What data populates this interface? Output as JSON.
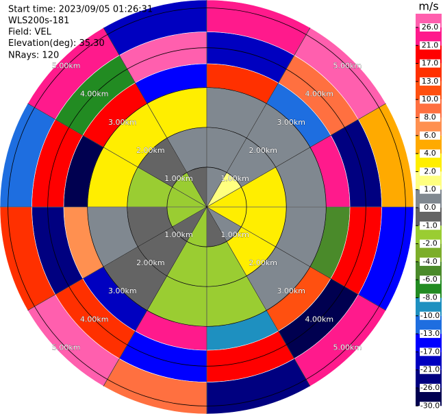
{
  "chart_data": {
    "type": "ppi",
    "annotations": [
      "Start time: 2023/09/05 01:26:31",
      "WLS200s-181",
      "Field: VEL",
      "Elevation(deg): 35.30",
      "NRays: 120"
    ],
    "range_ticks": [
      {
        "value": 1,
        "label": "1.00km"
      },
      {
        "value": 2,
        "label": "2.00km"
      },
      {
        "value": 3,
        "label": "3.00km"
      },
      {
        "value": 4,
        "label": "4.00km"
      },
      {
        "value": 5,
        "label": "5.00km"
      }
    ],
    "rlim": [
      0,
      5.2
    ],
    "grid": true,
    "field": {
      "azimuths_deg": [
        0,
        30,
        60,
        90,
        120,
        150,
        180,
        210,
        240,
        270,
        300,
        330,
        360
      ],
      "range_bins_km": [
        0,
        1,
        2,
        3,
        3.6,
        4.4,
        5.2
      ],
      "values": [
        [
          0.5,
          0.5,
          0.5,
          15,
          -20,
          25
        ],
        [
          1.5,
          0.5,
          0.5,
          -12,
          8,
          27
        ],
        [
          3,
          3,
          0.5,
          22,
          -25,
          5
        ],
        [
          3,
          3,
          0.5,
          -5,
          18,
          -15
        ],
        [
          0.5,
          3,
          0.5,
          11,
          -28,
          24
        ],
        [
          -0.5,
          -1.5,
          -1.5,
          -9,
          19,
          -22
        ],
        [
          -1.5,
          -1.5,
          -1.5,
          23,
          -16,
          9
        ],
        [
          -0.5,
          -0.5,
          -0.5,
          -19,
          14,
          28
        ],
        [
          -1.5,
          -0.5,
          0.5,
          7,
          -23,
          16
        ],
        [
          -1.5,
          -1.5,
          3,
          -27,
          20,
          -11
        ],
        [
          -1.5,
          -0.5,
          3,
          18,
          -7,
          24
        ],
        [
          -0.5,
          0.5,
          3,
          -14,
          26,
          -18
        ]
      ]
    },
    "colorbar": {
      "title": "m/s",
      "ticks": [
        {
          "value": 26,
          "label": "26.0"
        },
        {
          "value": 21,
          "label": "21.0"
        },
        {
          "value": 17,
          "label": "17.0"
        },
        {
          "value": 13,
          "label": "13.0"
        },
        {
          "value": 10,
          "label": "10.0"
        },
        {
          "value": 8,
          "label": "8.0"
        },
        {
          "value": 6,
          "label": "6.0"
        },
        {
          "value": 4,
          "label": "4.0"
        },
        {
          "value": 2,
          "label": "2.0"
        },
        {
          "value": 1,
          "label": "1.0"
        },
        {
          "value": 0,
          "label": "0.0"
        },
        {
          "value": -1,
          "label": "-1.0"
        },
        {
          "value": -2,
          "label": "-2.0"
        },
        {
          "value": -4,
          "label": "-4.0"
        },
        {
          "value": -6,
          "label": "-6.0"
        },
        {
          "value": -8,
          "label": "-8.0"
        },
        {
          "value": -10,
          "label": "-10.0"
        },
        {
          "value": -13,
          "label": "-13.0"
        },
        {
          "value": -17,
          "label": "-17.0"
        },
        {
          "value": -21,
          "label": "-21.0"
        },
        {
          "value": -26,
          "label": "-26.0"
        },
        {
          "value": -30,
          "label": "-30.0"
        }
      ],
      "colors": [
        "#ff5fae",
        "#ff1a8c",
        "#ff0000",
        "#ff3000",
        "#ff5010",
        "#ff7040",
        "#ff9050",
        "#ffaa00",
        "#ffee00",
        "#ffff80",
        "#808890",
        "#646464",
        "#9acd32",
        "#7cae2a",
        "#4a8a2a",
        "#228b22",
        "#1e90c0",
        "#1e6ee0",
        "#0000ff",
        "#0000c0",
        "#000080",
        "#000050"
      ]
    }
  }
}
